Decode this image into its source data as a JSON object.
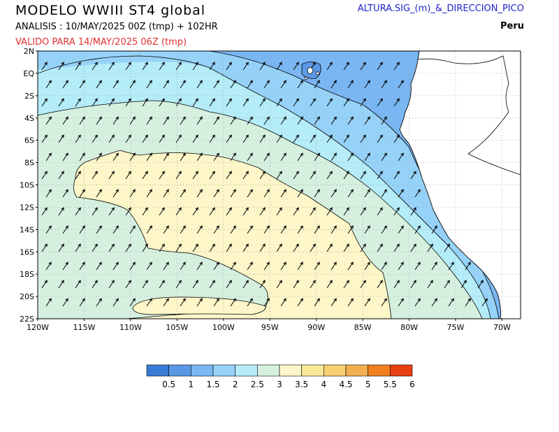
{
  "header": {
    "title": "MODELO  WWIII  ST4  global",
    "analysis": "ANALISIS : 10/MAY/2025 00Z  (tmp) + 102HR",
    "valid": "VALIDO PARA  14/MAY/2025 06Z  (tmp)",
    "variable": "ALTURA.SIG_(m)_&_DIRECCION_PICO",
    "region": "Peru",
    "valid_color": "#e03030",
    "variable_color": "#2222cc"
  },
  "map": {
    "lat_labels": [
      "2N",
      "EQ",
      "2S",
      "4S",
      "6S",
      "8S",
      "10S",
      "12S",
      "14S",
      "16S",
      "18S",
      "20S",
      "22S"
    ],
    "lat_values": [
      2,
      0,
      -2,
      -4,
      -6,
      -8,
      -10,
      -12,
      -14,
      -16,
      -18,
      -20,
      -22
    ],
    "lon_labels": [
      "120W",
      "115W",
      "110W",
      "105W",
      "100W",
      "95W",
      "90W",
      "85W",
      "80W",
      "75W",
      "70W"
    ],
    "lon_values": [
      -120,
      -115,
      -110,
      -105,
      -100,
      -95,
      -90,
      -85,
      -80,
      -75,
      -70
    ],
    "lat_range": [
      -22,
      2
    ],
    "lon_range": [
      -120,
      -68
    ],
    "gridlines": true,
    "arrow_direction": "toward north-east (peak direction)",
    "contour_levels": [
      1.5,
      2,
      2.5,
      3
    ]
  },
  "legend": {
    "labels": [
      "0.5",
      "1",
      "1.5",
      "2",
      "2.5",
      "3",
      "3.5",
      "4",
      "4.5",
      "5",
      "5.5",
      "6"
    ],
    "colors": [
      "#3a7bd5",
      "#5a98e6",
      "#7ab6f2",
      "#96d2f8",
      "#b4ecf8",
      "#d6f0e0",
      "#fcf6c8",
      "#f8e898",
      "#f8d070",
      "#f4b050",
      "#f08020",
      "#e84010"
    ]
  }
}
